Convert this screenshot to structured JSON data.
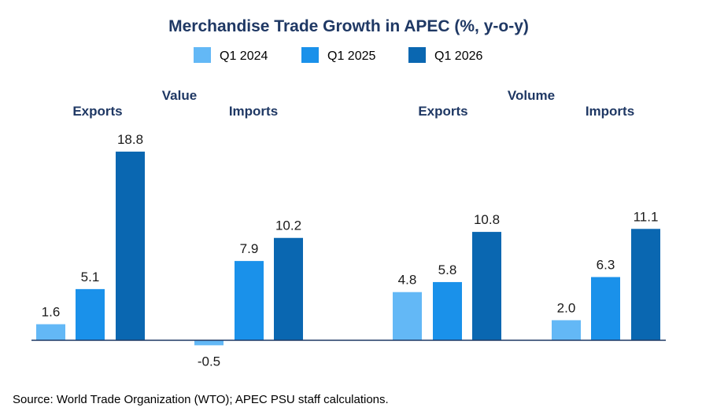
{
  "chart_data": {
    "type": "bar",
    "title": "Merchandise Trade Growth in APEC (%, y-o-y)",
    "legend_position": "top",
    "grid": false,
    "series": [
      {
        "name": "Q1 2024",
        "color": "#63B8F6",
        "values": [
          1.6,
          -0.5,
          4.8,
          2.0
        ]
      },
      {
        "name": "Q1 2025",
        "color": "#1A91EA",
        "values": [
          5.1,
          7.9,
          5.8,
          6.3
        ]
      },
      {
        "name": "Q1 2026",
        "color": "#0A67B1",
        "values": [
          18.8,
          10.2,
          10.8,
          11.1
        ]
      }
    ],
    "categories": [
      "Exports",
      "Imports",
      "Exports",
      "Imports"
    ],
    "groups": [
      {
        "label": "Value",
        "categories": [
          "Exports",
          "Imports"
        ]
      },
      {
        "label": "Volume",
        "categories": [
          "Exports",
          "Imports"
        ]
      }
    ],
    "ylim": [
      -0.5,
      18.8
    ]
  },
  "source": "Source: World Trade Organization (WTO); APEC PSU staff calculations."
}
